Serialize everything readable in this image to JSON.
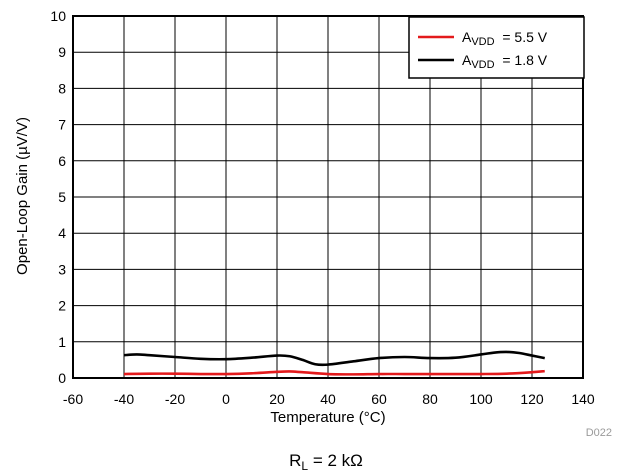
{
  "chart_data": {
    "type": "line",
    "xlabel": "Temperature (°C)",
    "ylabel": "Open-Loop Gain (µV/V)",
    "xlim": [
      -60,
      140
    ],
    "ylim": [
      0,
      10
    ],
    "xticks": [
      -60,
      -40,
      -20,
      0,
      20,
      40,
      60,
      80,
      100,
      120,
      140
    ],
    "yticks": [
      0,
      1,
      2,
      3,
      4,
      5,
      6,
      7,
      8,
      9,
      10
    ],
    "grid": true,
    "legend_position": "top-right",
    "series": [
      {
        "name_main": "A",
        "name_sub": "VDD",
        "name_rest": "  = 5.5 V",
        "color": "#e31a1c",
        "x": [
          -40,
          -30,
          -20,
          -10,
          0,
          10,
          20,
          25,
          30,
          40,
          50,
          60,
          70,
          80,
          90,
          100,
          110,
          120,
          125
        ],
        "y": [
          0.11,
          0.12,
          0.12,
          0.11,
          0.11,
          0.13,
          0.17,
          0.18,
          0.16,
          0.11,
          0.1,
          0.11,
          0.11,
          0.11,
          0.11,
          0.11,
          0.12,
          0.16,
          0.19
        ]
      },
      {
        "name_main": "A",
        "name_sub": "VDD",
        "name_rest": "  = 1.8 V",
        "color": "#000000",
        "x": [
          -40,
          -35,
          -30,
          -20,
          -10,
          0,
          10,
          20,
          25,
          30,
          35,
          40,
          50,
          60,
          70,
          80,
          90,
          100,
          105,
          110,
          115,
          120,
          125
        ],
        "y": [
          0.63,
          0.65,
          0.63,
          0.58,
          0.53,
          0.52,
          0.56,
          0.62,
          0.6,
          0.5,
          0.38,
          0.37,
          0.46,
          0.55,
          0.58,
          0.55,
          0.56,
          0.65,
          0.7,
          0.72,
          0.69,
          0.62,
          0.55
        ]
      }
    ]
  },
  "figure_code": "D022",
  "caption": {
    "main": "R",
    "sub": "L",
    "rest": " = 2 kΩ"
  }
}
